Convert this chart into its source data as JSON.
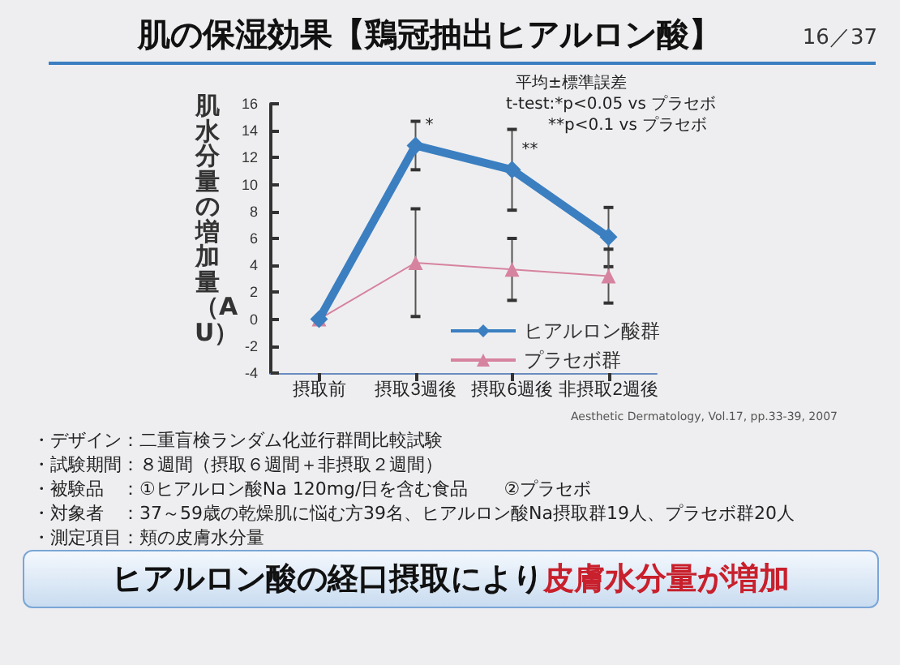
{
  "chart_data": {
    "type": "line",
    "title": "肌の保湿効果【鶏冠抽出ヒアルロン酸】",
    "ylabel": "肌水分量の増加量（AU）",
    "categories": [
      "摂取前",
      "摂取3週後",
      "摂取6週後",
      "非摂取2週後"
    ],
    "series": [
      {
        "name": "ヒアルロン酸群",
        "color": "#3b7fc1",
        "marker": "diamond",
        "values": [
          0,
          12.9,
          11.1,
          6.1
        ],
        "errors": [
          null,
          1.8,
          3,
          2.2
        ]
      },
      {
        "name": "プラセボ群",
        "color": "#d6839f",
        "marker": "triangle",
        "values": [
          0,
          4.2,
          3.7,
          3.2
        ],
        "errors": [
          null,
          4,
          2.3,
          2
        ]
      }
    ],
    "ylim": [
      -4,
      16
    ],
    "yticks": [
      -4,
      -2,
      0,
      2,
      4,
      6,
      8,
      10,
      12,
      14,
      16
    ],
    "grid": false,
    "legend": "bottom right",
    "annotations": [
      "16／37",
      "平均±標準誤差",
      "t-test:*p<0.05 vs プラセボ",
      "**p<0.1  vs プラセボ",
      {
        "text": "*",
        "x": "摂取3週後",
        "y": 12.9
      },
      {
        "text": "**",
        "x": "摂取6週後",
        "y": 11.1
      },
      "Aesthetic Dermatology, Vol.17, pp.33-39, 2007",
      "・デザイン：二重盲検ランダム化並行群間比較試験",
      "・試験期間：８週間（摂取６週間＋非摂取２週間）",
      "・被験品　：①ヒアルロン酸Na 120mg/日を含む食品　　②プラセボ",
      "・対象者　：37～59歳の乾燥肌に悩む方39名、ヒアルロン酸Na摂取群19人、プラセボ群20人",
      "・測定項目：頬の皮膚水分量",
      "ヒアルロン酸の経口摂取により",
      "皮膚水分量が増加"
    ]
  }
}
